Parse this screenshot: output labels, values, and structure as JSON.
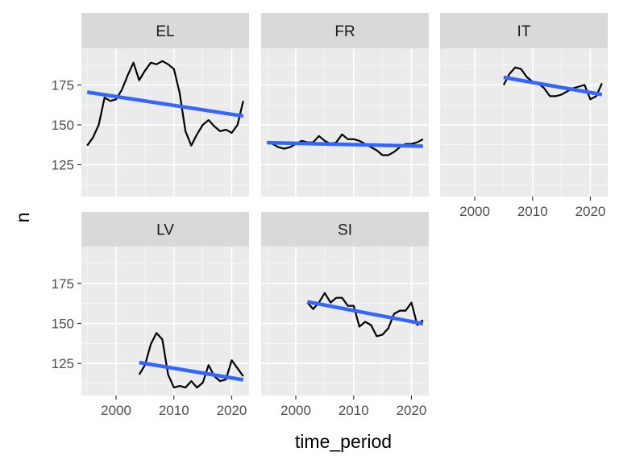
{
  "chart_data": {
    "type": "line",
    "xlabel": "time_period",
    "ylabel": "n",
    "xlim": [
      1994,
      2023
    ],
    "ylim": [
      105,
      198
    ],
    "x_ticks": [
      2000,
      2010,
      2020
    ],
    "y_ticks": [
      125,
      150,
      175
    ],
    "grid": true,
    "legend": "none",
    "colors": {
      "series": "#000000",
      "trend": "#3366FF",
      "panel_bg": "#EBEBEB",
      "strip_bg": "#D9D9D9",
      "grid": "#FFFFFF"
    },
    "panels": [
      {
        "name": "EL",
        "x": [
          1995,
          1996,
          1997,
          1998,
          1999,
          2000,
          2001,
          2002,
          2003,
          2004,
          2005,
          2006,
          2007,
          2008,
          2009,
          2010,
          2011,
          2012,
          2013,
          2014,
          2015,
          2016,
          2017,
          2018,
          2019,
          2020,
          2021,
          2022
        ],
        "y": [
          137,
          142,
          150,
          167,
          165,
          166,
          172,
          181,
          189,
          178,
          184,
          189,
          188,
          190,
          188,
          185,
          170,
          146,
          137,
          144,
          150,
          153,
          149,
          146,
          147,
          145,
          150,
          165
        ],
        "trend": [
          [
            1995,
            170.5
          ],
          [
            2022,
            155.5
          ]
        ]
      },
      {
        "name": "FR",
        "x": [
          1995,
          1996,
          1997,
          1998,
          1999,
          2000,
          2001,
          2002,
          2003,
          2004,
          2005,
          2006,
          2007,
          2008,
          2009,
          2010,
          2011,
          2012,
          2013,
          2014,
          2015,
          2016,
          2017,
          2018,
          2019,
          2020,
          2021,
          2022
        ],
        "y": [
          139,
          138,
          136,
          135,
          136,
          138,
          140,
          139,
          139,
          143,
          140,
          138,
          139,
          144,
          141,
          141,
          140,
          138,
          136,
          134,
          131,
          131,
          133,
          136,
          138,
          138,
          139,
          141
        ],
        "trend": [
          [
            1995,
            138.8
          ],
          [
            2022,
            136.6
          ]
        ]
      },
      {
        "name": "IT",
        "x": [
          2005,
          2006,
          2007,
          2008,
          2009,
          2010,
          2011,
          2012,
          2013,
          2014,
          2015,
          2016,
          2017,
          2018,
          2019,
          2020,
          2021,
          2022
        ],
        "y": [
          175,
          182,
          186,
          185,
          180,
          177,
          176,
          173,
          168,
          168,
          169,
          171,
          173,
          174,
          175,
          166,
          168,
          176
        ],
        "trend": [
          [
            2005,
            179.8
          ],
          [
            2022,
            169.0
          ]
        ]
      },
      {
        "name": "LV",
        "x": [
          2004,
          2005,
          2006,
          2007,
          2008,
          2009,
          2010,
          2011,
          2012,
          2013,
          2014,
          2015,
          2016,
          2017,
          2018,
          2019,
          2020,
          2021,
          2022
        ],
        "y": [
          118,
          124,
          137,
          144,
          140,
          118,
          110,
          111,
          110,
          114,
          110,
          113,
          124,
          117,
          114,
          115,
          127,
          122,
          117
        ],
        "trend": [
          [
            2004,
            125.6
          ],
          [
            2022,
            114.8
          ]
        ]
      },
      {
        "name": "SI",
        "x": [
          2002,
          2003,
          2004,
          2005,
          2006,
          2007,
          2008,
          2009,
          2010,
          2011,
          2012,
          2013,
          2014,
          2015,
          2016,
          2017,
          2018,
          2019,
          2020,
          2021,
          2022
        ],
        "y": [
          163,
          159,
          163,
          169,
          163,
          166,
          166,
          161,
          161,
          148,
          151,
          149,
          142,
          143,
          147,
          156,
          158,
          158,
          163,
          149,
          152
        ],
        "trend": [
          [
            2002,
            163.5
          ],
          [
            2022,
            149.8
          ]
        ]
      }
    ]
  }
}
